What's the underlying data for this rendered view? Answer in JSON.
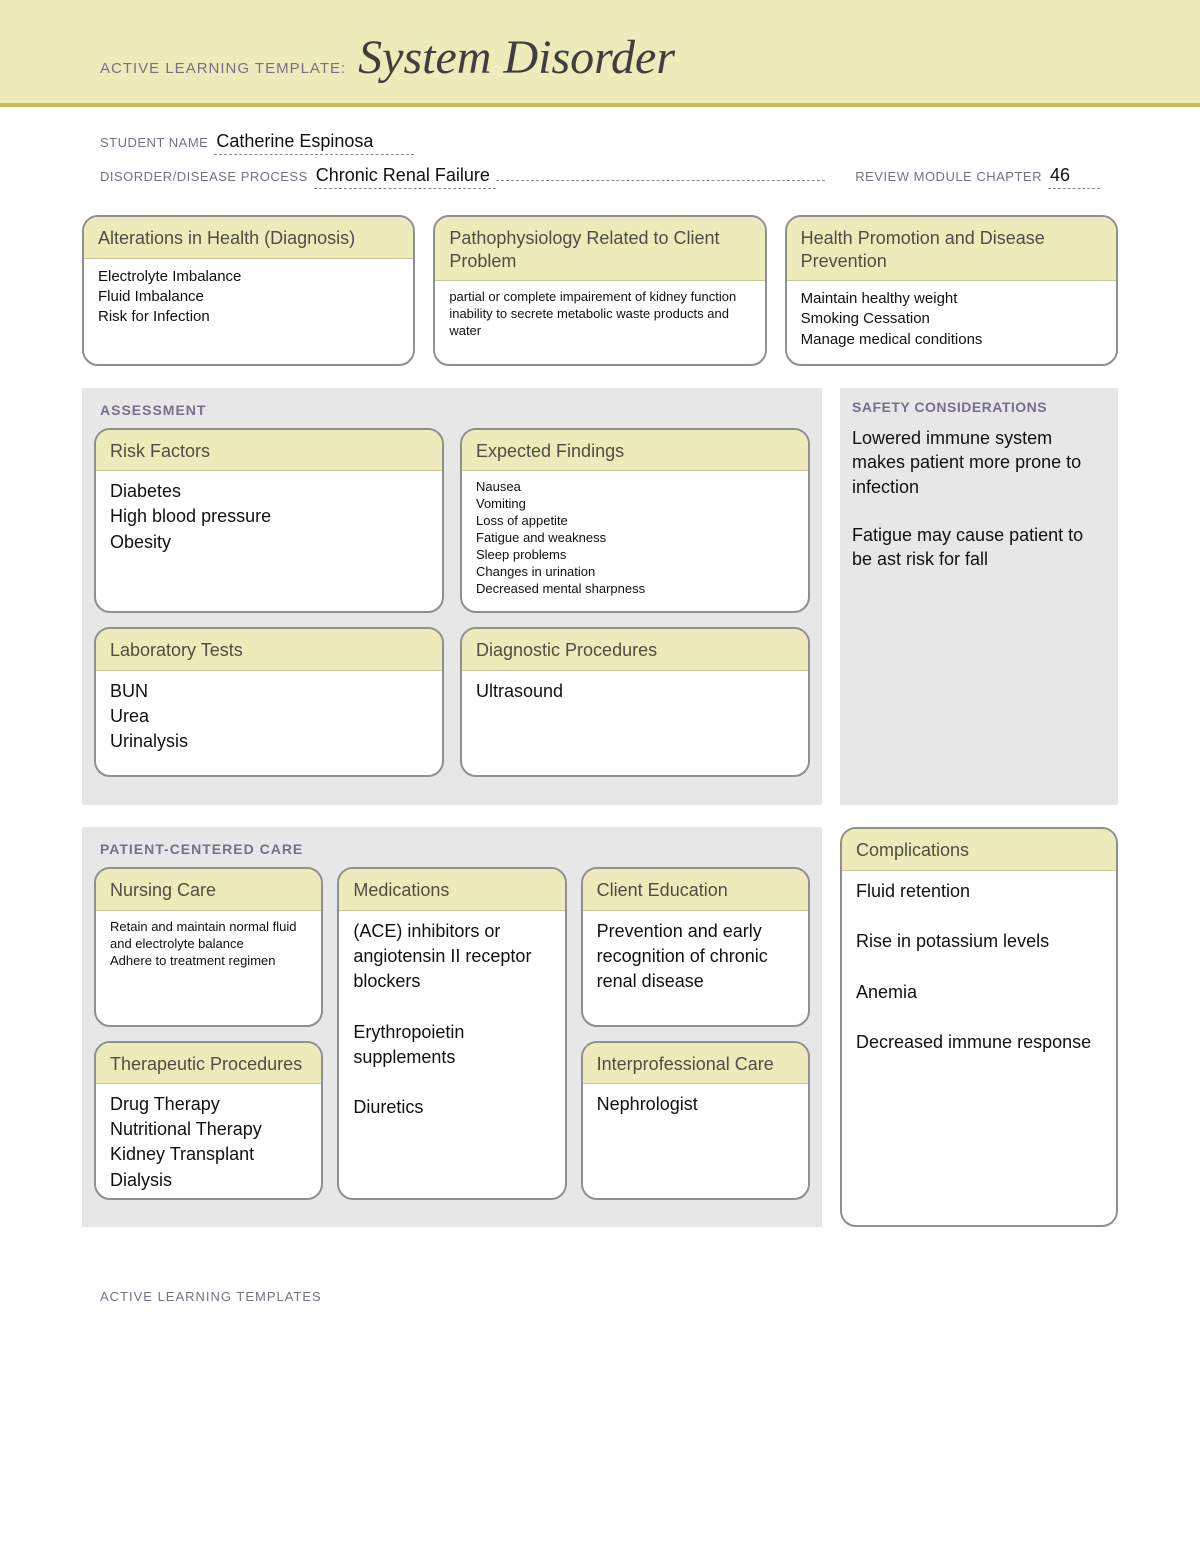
{
  "colors": {
    "banner_bg": "#ecebb9",
    "banner_border": "#c3bf4f",
    "label_text": "#7a6f88",
    "title_text": "#3f3f3f",
    "box_border": "#8f8f8f",
    "box_header_bg": "#ecebb9",
    "box_header_text": "#4f4e44",
    "section_band_bg": "#e7e7e7",
    "body_text": "#111111",
    "page_bg": "#ffffff"
  },
  "typography": {
    "title_font": "Georgia serif italic",
    "title_size_pt": 36,
    "label_size_pt": 11,
    "box_header_size_pt": 14,
    "body_size_pt": 12,
    "body_large_pt": 14
  },
  "banner": {
    "label": "ACTIVE LEARNING TEMPLATE:",
    "title": "System Disorder"
  },
  "meta": {
    "student_label": "STUDENT NAME",
    "student_value": "Catherine Espinosa",
    "process_label": "DISORDER/DISEASE PROCESS",
    "process_value": "Chronic Renal Failure",
    "chapter_label": "REVIEW MODULE CHAPTER",
    "chapter_value": "46"
  },
  "top_boxes": {
    "alterations": {
      "title": "Alterations in\nHealth (Diagnosis)",
      "body": "Electrolyte Imbalance\nFluid Imbalance\nRisk for Infection"
    },
    "patho": {
      "title": "Pathophysiology Related\nto Client Problem",
      "body": "partial or complete impairement of kidney function\ninability to secrete metabolic waste products and water"
    },
    "health_promo": {
      "title": "Health Promotion and\nDisease Prevention",
      "body": "Maintain healthy weight\nSmoking Cessation\nManage medical conditions"
    }
  },
  "assessment": {
    "section_title": "ASSESSMENT",
    "risk_factors": {
      "title": "Risk Factors",
      "body": "Diabetes\nHigh blood pressure\nObesity"
    },
    "expected_findings": {
      "title": "Expected Findings",
      "body": "Nausea\nVomiting\nLoss of appetite\nFatigue and weakness\nSleep problems\nChanges in urination\nDecreased mental sharpness"
    },
    "labs": {
      "title": "Laboratory Tests",
      "body": "BUN\nUrea\nUrinalysis"
    },
    "diagnostics": {
      "title": "Diagnostic Procedures",
      "body": "Ultrasound"
    }
  },
  "safety": {
    "title": "SAFETY\nCONSIDERATIONS",
    "body": "Lowered immune system makes patient more prone to infection\n\nFatigue may cause patient to be ast risk for fall"
  },
  "pcc": {
    "section_title": "PATIENT-CENTERED CARE",
    "nursing": {
      "title": "Nursing Care",
      "body": "Retain and maintain normal fluid and electrolyte balance\nAdhere to treatment regimen"
    },
    "therapeutic": {
      "title": "Therapeutic Procedures",
      "body": "Drug Therapy\nNutritional Therapy\nKidney Transplant\nDialysis"
    },
    "medications": {
      "title": "Medications",
      "body": "(ACE) inhibitors or angiotensin II receptor blockers\n\nErythropoietin supplements\n\nDiuretics"
    },
    "client_education": {
      "title": "Client Education",
      "body": "Prevention and early recognition of chronic renal disease"
    },
    "interprofessional": {
      "title": "Interprofessional Care",
      "body": "Nephrologist"
    }
  },
  "complications": {
    "title": "Complications",
    "body": "Fluid retention\n\nRise in potassium levels\n\nAnemia\n\nDecreased immune response"
  },
  "footer": "ACTIVE LEARNING TEMPLATES"
}
